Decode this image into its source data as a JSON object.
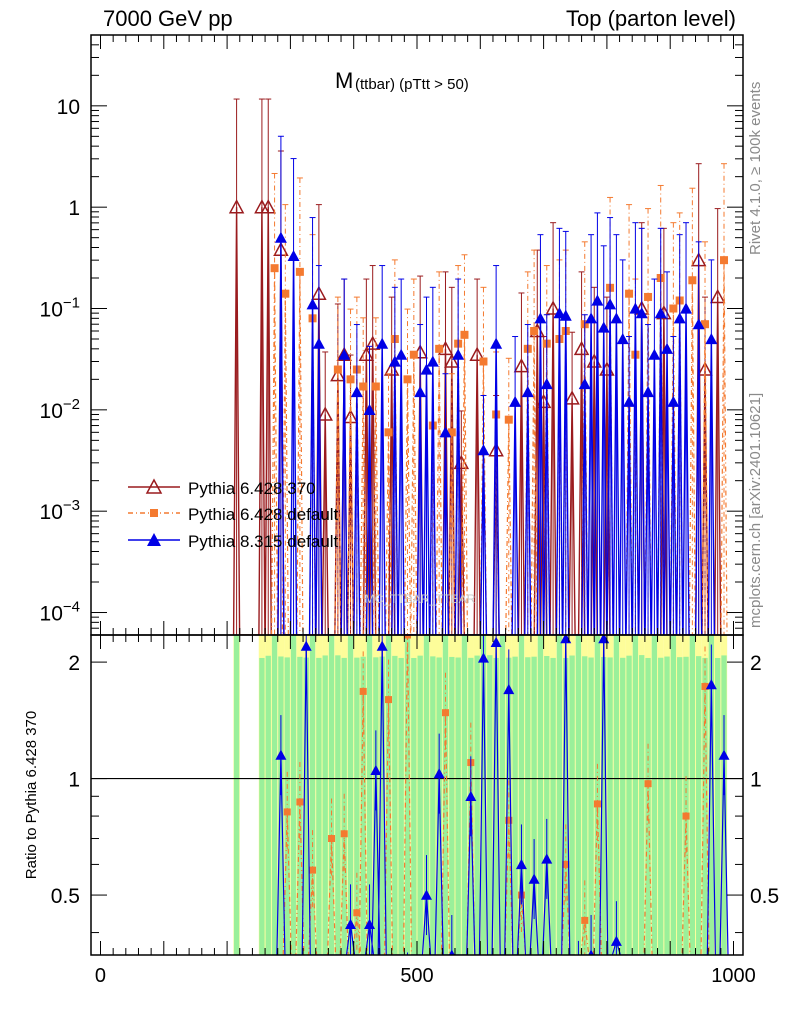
{
  "header": {
    "left": "7000 GeV pp",
    "right": "Top (parton level)"
  },
  "side_labels": {
    "rivet": "Rivet 4.1.0, ≥ 100k events",
    "mcplots": "mcplots.cern.ch [arXiv:2401.10621]"
  },
  "watermark": "MC_TTBAR_TTBAR",
  "chart_data": {
    "type": "scatter",
    "title": "M (ttbar) (pTtt > 50)",
    "title_main": "M",
    "title_sub": "(ttbar) (pTtt > 50)",
    "xlabel": "",
    "ylabel": "",
    "xlim": [
      -15,
      1015
    ],
    "ylim": [
      6e-05,
      50
    ],
    "yscale": "log",
    "x_ticks": [
      {
        "value": 0,
        "label": "0"
      },
      {
        "value": 500,
        "label": "500"
      },
      {
        "value": 1000,
        "label": "1000"
      }
    ],
    "y_ticks": [
      {
        "value": 10,
        "label": "10"
      },
      {
        "value": 1,
        "label": "1"
      },
      {
        "value": 0.1,
        "label": "10^-1"
      },
      {
        "value": 0.01,
        "label": "10^-2"
      },
      {
        "value": 0.001,
        "label": "10^-3"
      },
      {
        "value": 0.0001,
        "label": "10^-4"
      }
    ],
    "legend_position": "middle-left",
    "series": [
      {
        "name": "Pythia 6.428 370",
        "color": "#9a1b1e",
        "marker": "triangle-open",
        "x": [
          215,
          255,
          265,
          285,
          345,
          355,
          375,
          385,
          395,
          420,
          430,
          460,
          505,
          545,
          555,
          570,
          595,
          625,
          665,
          690,
          700,
          715,
          745,
          760,
          780,
          800,
          855,
          890,
          945,
          955,
          975
        ],
        "y": [
          1.0,
          1.0,
          1.0,
          0.38,
          0.14,
          0.009,
          0.022,
          0.035,
          0.0085,
          0.035,
          0.045,
          0.025,
          0.037,
          0.04,
          0.03,
          0.003,
          0.035,
          0.004,
          0.027,
          0.06,
          0.012,
          0.1,
          0.013,
          0.04,
          0.03,
          0.025,
          0.1,
          0.09,
          0.3,
          0.025,
          0.13
        ]
      },
      {
        "name": "Pythia 6.428 default",
        "color": "#f47a30",
        "marker": "square",
        "x": [
          275,
          292,
          315,
          335,
          375,
          395,
          405,
          415,
          435,
          455,
          465,
          485,
          495,
          525,
          535,
          555,
          565,
          575,
          605,
          625,
          645,
          675,
          685,
          705,
          725,
          735,
          765,
          805,
          835,
          845,
          865,
          885,
          905,
          915,
          935,
          955,
          985
        ],
        "y": [
          0.25,
          0.14,
          0.23,
          0.08,
          0.025,
          0.02,
          0.025,
          0.017,
          0.017,
          0.006,
          0.05,
          0.02,
          0.035,
          0.007,
          0.04,
          0.006,
          0.045,
          0.055,
          0.03,
          0.009,
          0.008,
          0.04,
          0.06,
          0.045,
          0.05,
          0.06,
          0.07,
          0.16,
          0.14,
          0.035,
          0.13,
          0.2,
          0.1,
          0.12,
          0.19,
          0.07,
          0.3
        ]
      },
      {
        "name": "Pythia 8.315 default",
        "color": "#0000e6",
        "marker": "triangle-filled",
        "x": [
          285,
          305,
          335,
          345,
          385,
          405,
          425,
          445,
          465,
          475,
          505,
          515,
          525,
          545,
          565,
          605,
          625,
          655,
          675,
          695,
          705,
          725,
          735,
          765,
          775,
          785,
          795,
          805,
          815,
          825,
          835,
          845,
          855,
          865,
          875,
          885,
          895,
          905,
          915,
          925,
          945,
          965
        ],
        "y": [
          0.5,
          0.33,
          0.11,
          0.045,
          0.035,
          0.015,
          0.01,
          0.045,
          0.03,
          0.035,
          0.015,
          0.025,
          0.03,
          0.006,
          0.035,
          0.004,
          0.045,
          0.012,
          0.015,
          0.08,
          0.018,
          0.09,
          0.085,
          0.018,
          0.08,
          0.12,
          0.065,
          0.11,
          0.08,
          0.05,
          0.012,
          0.1,
          0.09,
          0.015,
          0.035,
          0.09,
          0.04,
          0.012,
          0.08,
          0.1,
          0.07,
          0.05
        ]
      }
    ],
    "ratio": {
      "ylabel": "Ratio to Pythia 6.428 370",
      "ylim": [
        0.35,
        2.35
      ],
      "yscale": "log",
      "y_ticks": [
        {
          "value": 0.5,
          "label": "0.5"
        },
        {
          "value": 1,
          "label": "1"
        },
        {
          "value": 2,
          "label": "2"
        }
      ],
      "reference_line": 1,
      "series": [
        {
          "name": "Pythia 6.428 default",
          "x": [
            295,
            315,
            335,
            365,
            385,
            405,
            415,
            455,
            485,
            545,
            585,
            645,
            665,
            735,
            765,
            785,
            865,
            925,
            955
          ],
          "y": [
            0.82,
            0.87,
            0.58,
            0.7,
            0.72,
            0.45,
            1.68,
            1.6,
            2.35,
            1.48,
            1.1,
            0.78,
            0.5,
            0.6,
            0.43,
            0.86,
            0.97,
            0.8,
            1.73
          ]
        },
        {
          "name": "Pythia 8.315 default",
          "x": [
            285,
            325,
            395,
            425,
            435,
            445,
            485,
            515,
            535,
            555,
            585,
            605,
            625,
            645,
            665,
            685,
            705,
            735,
            755,
            775,
            795,
            815,
            965,
            985
          ],
          "y": [
            1.15,
            2.2,
            0.42,
            0.42,
            1.05,
            2.2,
            0.28,
            0.5,
            1.03,
            0.35,
            0.9,
            2.05,
            2.25,
            1.7,
            0.6,
            0.55,
            0.62,
            2.3,
            0.3,
            0.35,
            2.3,
            0.38,
            1.75,
            1.15
          ]
        }
      ],
      "band_x": [
        215,
        255,
        265,
        275,
        285,
        295,
        305,
        315,
        325,
        335,
        345,
        355,
        365,
        375,
        385,
        395,
        405,
        415,
        425,
        435,
        445,
        455,
        465,
        475,
        485,
        495,
        505,
        515,
        525,
        535,
        545,
        555,
        565,
        575,
        585,
        595,
        605,
        615,
        625,
        635,
        645,
        655,
        665,
        675,
        685,
        695,
        705,
        715,
        725,
        735,
        745,
        755,
        765,
        775,
        785,
        795,
        805,
        815,
        825,
        835,
        845,
        855,
        865,
        875,
        885,
        895,
        905,
        915,
        925,
        935,
        945,
        955,
        965,
        975,
        985
      ]
    }
  }
}
